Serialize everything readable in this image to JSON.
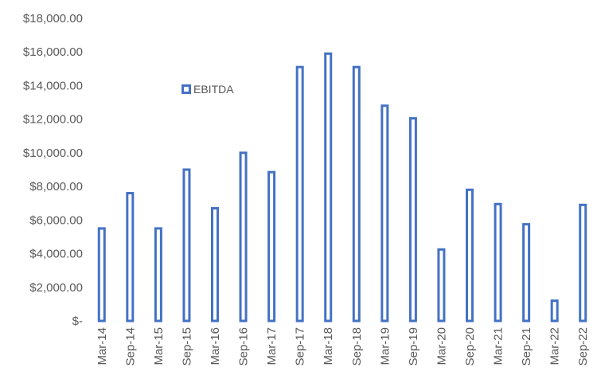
{
  "chart_data": {
    "type": "bar",
    "categories": [
      "Mar-14",
      "Sep-14",
      "Mar-15",
      "Sep-15",
      "Mar-16",
      "Sep-16",
      "Mar-17",
      "Sep-17",
      "Mar-18",
      "Sep-18",
      "Mar-19",
      "Sep-19",
      "Mar-20",
      "Sep-20",
      "Mar-21",
      "Sep-21",
      "Mar-22",
      "Sep-22"
    ],
    "series": [
      {
        "name": "EBITDA",
        "values": [
          5500,
          7600,
          5500,
          9000,
          6700,
          10000,
          8850,
          15100,
          15900,
          15100,
          12800,
          12050,
          4250,
          7800,
          6950,
          5750,
          1200,
          6900
        ],
        "color": "#4472C4"
      }
    ],
    "ylim": [
      0,
      18000
    ],
    "yticks": [
      0,
      2000,
      4000,
      6000,
      8000,
      10000,
      12000,
      14000,
      16000,
      18000
    ],
    "ytick_labels": [
      "$-",
      "$2,000.00",
      "$4,000.00",
      "$6,000.00",
      "$8,000.00",
      "$10,000.00",
      "$12,000.00",
      "$14,000.00",
      "$16,000.00",
      "$18,000.00"
    ],
    "grid": false,
    "legend": {
      "position": "top-left inside",
      "entries": [
        "EBITDA"
      ]
    },
    "bar_style": "hollow outline"
  }
}
